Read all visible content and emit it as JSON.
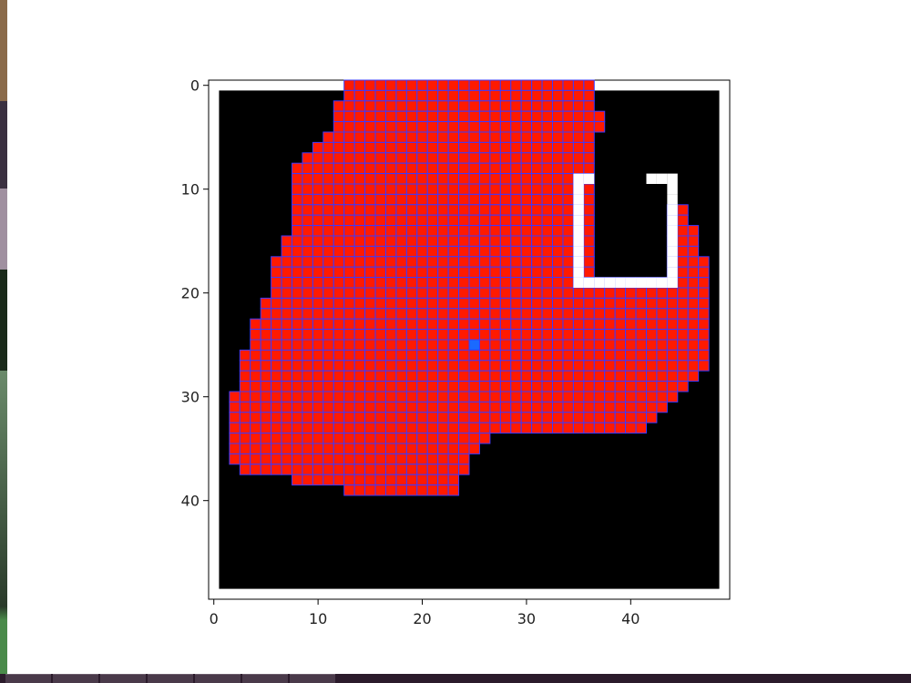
{
  "chart_data": {
    "type": "heatmap",
    "title": "",
    "xlabel": "",
    "ylabel": "",
    "xlim": [
      -0.5,
      49.5
    ],
    "ylim": [
      49.5,
      -0.5
    ],
    "x_ticks": [
      0,
      10,
      20,
      30,
      40
    ],
    "y_ticks": [
      0,
      10,
      20,
      30,
      40
    ],
    "x_tick_labels": [
      "0",
      "10",
      "20",
      "30",
      "40"
    ],
    "y_tick_labels": [
      "0",
      "10",
      "20",
      "30",
      "40"
    ],
    "grid_size": [
      50,
      50
    ],
    "border_cell_value": "white",
    "background_value": "black",
    "explored_cell_color": "#ff1a00",
    "explored_edge_color": "#3a3aff",
    "center_cell": [
      25,
      25
    ],
    "explored_rows": [
      [
        0,
        13,
        36
      ],
      [
        1,
        13,
        36
      ],
      [
        2,
        12,
        36
      ],
      [
        3,
        12,
        37
      ],
      [
        4,
        12,
        37
      ],
      [
        5,
        11,
        36
      ],
      [
        6,
        10,
        36
      ],
      [
        7,
        9,
        36
      ],
      [
        8,
        8,
        36
      ],
      [
        9,
        8,
        36
      ],
      [
        10,
        8,
        36
      ],
      [
        11,
        8,
        36
      ],
      [
        12,
        8,
        36
      ],
      [
        13,
        8,
        36
      ],
      [
        14,
        8,
        36
      ],
      [
        15,
        7,
        36
      ],
      [
        16,
        7,
        36
      ],
      [
        17,
        6,
        36
      ],
      [
        18,
        6,
        36
      ],
      [
        19,
        6,
        47
      ],
      [
        20,
        6,
        47
      ],
      [
        21,
        5,
        47
      ],
      [
        22,
        5,
        47
      ],
      [
        23,
        4,
        47
      ],
      [
        24,
        4,
        47
      ],
      [
        25,
        4,
        47
      ],
      [
        26,
        3,
        47
      ],
      [
        27,
        3,
        47
      ],
      [
        28,
        3,
        46
      ],
      [
        29,
        3,
        45
      ],
      [
        30,
        2,
        44
      ],
      [
        31,
        2,
        43
      ],
      [
        32,
        2,
        42
      ],
      [
        33,
        2,
        41
      ],
      [
        34,
        2,
        26
      ],
      [
        35,
        2,
        25
      ],
      [
        36,
        2,
        24
      ],
      [
        37,
        3,
        24
      ],
      [
        38,
        8,
        23
      ],
      [
        39,
        13,
        23
      ]
    ],
    "extra_rows_right": [
      [
        12,
        44,
        45
      ],
      [
        13,
        44,
        45
      ],
      [
        14,
        44,
        46
      ],
      [
        15,
        44,
        46
      ],
      [
        16,
        44,
        46
      ],
      [
        17,
        44,
        47
      ],
      [
        18,
        44,
        47
      ]
    ],
    "wall_cells": [
      [
        9,
        35
      ],
      [
        9,
        36
      ],
      [
        9,
        42
      ],
      [
        9,
        43
      ],
      [
        9,
        44
      ],
      [
        10,
        35
      ],
      [
        10,
        44
      ],
      [
        11,
        35
      ],
      [
        11,
        44
      ],
      [
        12,
        35
      ],
      [
        12,
        44
      ],
      [
        13,
        35
      ],
      [
        13,
        44
      ],
      [
        14,
        35
      ],
      [
        14,
        44
      ],
      [
        15,
        35
      ],
      [
        15,
        44
      ],
      [
        16,
        35
      ],
      [
        16,
        44
      ],
      [
        17,
        35
      ],
      [
        17,
        44
      ],
      [
        18,
        35
      ],
      [
        18,
        44
      ],
      [
        19,
        35
      ],
      [
        19,
        36
      ],
      [
        19,
        37
      ],
      [
        19,
        38
      ],
      [
        19,
        39
      ],
      [
        19,
        40
      ],
      [
        19,
        41
      ],
      [
        19,
        42
      ],
      [
        19,
        43
      ],
      [
        19,
        44
      ]
    ]
  }
}
